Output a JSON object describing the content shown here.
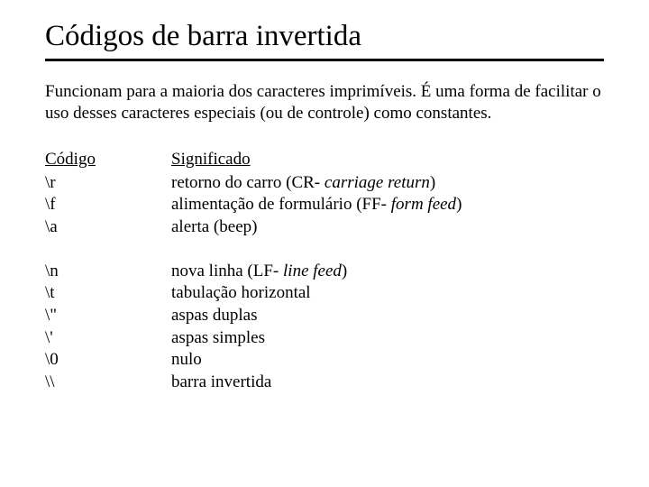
{
  "title": "Códigos de barra invertida",
  "intro": "Funcionam para a maioria dos caracteres imprimíveis. É uma forma de facilitar o uso desses caracteres especiais (ou de controle) como constantes.",
  "headers": {
    "code": "Código",
    "meaning": "Significado"
  },
  "group1": [
    {
      "code": "\\r",
      "meaning_prefix": "retorno do carro (CR- ",
      "meaning_italic": "carriage return",
      "meaning_suffix": ")"
    },
    {
      "code": "\\f",
      "meaning_prefix": "alimentação de formulário (FF- ",
      "meaning_italic": "form feed",
      "meaning_suffix": ")"
    },
    {
      "code": "\\a",
      "meaning_prefix": "alerta (beep)",
      "meaning_italic": "",
      "meaning_suffix": ""
    }
  ],
  "group2": [
    {
      "code": "\\n",
      "meaning_prefix": "nova linha (LF- ",
      "meaning_italic": "line feed",
      "meaning_suffix": ")"
    },
    {
      "code": "\\t",
      "meaning_prefix": "tabulação horizontal",
      "meaning_italic": "",
      "meaning_suffix": ""
    },
    {
      "code": "\\\"",
      "meaning_prefix": "aspas duplas",
      "meaning_italic": "",
      "meaning_suffix": ""
    },
    {
      "code": "\\'",
      "meaning_prefix": "aspas simples",
      "meaning_italic": "",
      "meaning_suffix": ""
    },
    {
      "code": "\\0",
      "meaning_prefix": "nulo",
      "meaning_italic": "",
      "meaning_suffix": ""
    },
    {
      "code": "\\\\",
      "meaning_prefix": "barra invertida",
      "meaning_italic": "",
      "meaning_suffix": ""
    }
  ],
  "colors": {
    "background": "#ffffff",
    "text": "#000000",
    "rule": "#000000"
  },
  "typography": {
    "title_fontsize": 33,
    "body_fontsize": 19,
    "font_family": "serif"
  }
}
